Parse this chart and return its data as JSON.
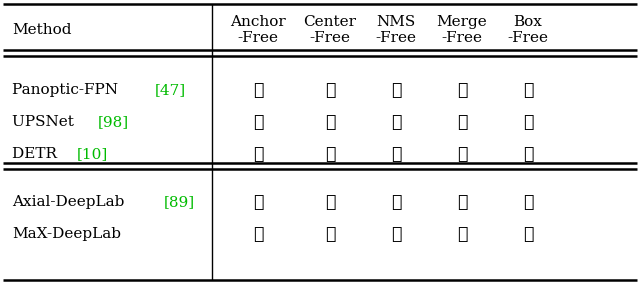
{
  "col_headers": [
    [
      "Anchor",
      "-Free"
    ],
    [
      "Center",
      "-Free"
    ],
    [
      "NMS",
      "-Free"
    ],
    [
      "Merge",
      "-Free"
    ],
    [
      "Box",
      "-Free"
    ]
  ],
  "row_header": "Method",
  "rows": [
    {
      "name": "Panoptic-FPN ",
      "cite": "[47]",
      "marks": [
        false,
        true,
        false,
        false,
        false
      ]
    },
    {
      "name": "UPSNet ",
      "cite": "[98]",
      "marks": [
        false,
        true,
        false,
        true,
        false
      ]
    },
    {
      "name": "DETR ",
      "cite": "[10]",
      "marks": [
        true,
        true,
        true,
        true,
        false
      ]
    },
    {
      "name": "Axial-DeepLab ",
      "cite": "[89]",
      "marks": [
        true,
        false,
        false,
        false,
        true
      ]
    },
    {
      "name": "MaX-DeepLab",
      "cite": "",
      "marks": [
        true,
        true,
        true,
        true,
        true
      ]
    }
  ],
  "check_char": "✓",
  "cross_char": "✗",
  "cite_color": "#00bb00",
  "bg_color": "#ffffff",
  "figsize": [
    6.4,
    2.84
  ],
  "dpi": 100,
  "text_fontsize": 11.0,
  "mark_fontsize": 12.5,
  "header_fontsize": 11.0
}
